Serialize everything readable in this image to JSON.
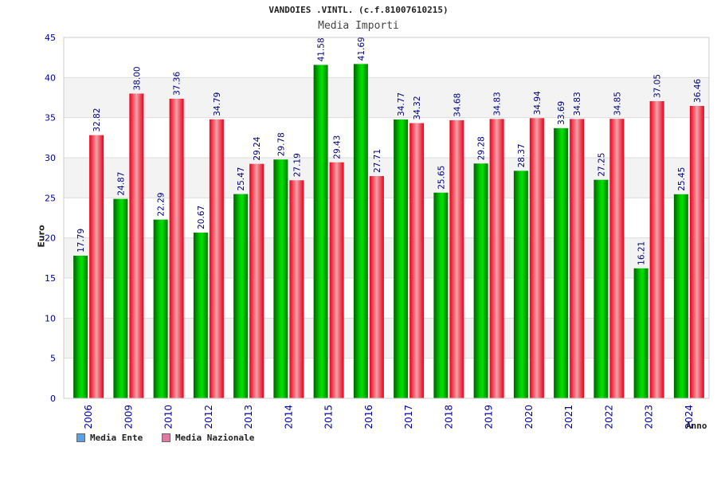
{
  "colors": {
    "ente": "#00c800",
    "nazionale": "#f02828",
    "legend_ente": "#5aa0e6",
    "legend_nazionale": "#e07aa0",
    "axis_text": "#0000a0",
    "value_text": "#000080",
    "grid": "#dddddd",
    "band": "#f3f3f3"
  },
  "chart_data": {
    "type": "bar",
    "title": "VANDOIES .VINTL. (c.f.81007610215)",
    "subtitle": "Media Importi",
    "xlabel": "Anno",
    "ylabel": "Euro",
    "ylim": [
      0,
      45
    ],
    "yticks": [
      "0",
      "5",
      "10",
      "15",
      "20",
      "25",
      "30",
      "35",
      "40",
      "45"
    ],
    "categories": [
      "2006",
      "2009",
      "2010",
      "2012",
      "2013",
      "2014",
      "2015",
      "2016",
      "2017",
      "2018",
      "2019",
      "2020",
      "2021",
      "2022",
      "2023",
      "2024"
    ],
    "series": [
      {
        "name": "Media Ente",
        "values": [
          17.79,
          24.87,
          22.29,
          20.67,
          25.47,
          29.78,
          41.58,
          41.69,
          34.77,
          25.65,
          29.28,
          28.37,
          33.69,
          27.25,
          16.21,
          25.45
        ],
        "labels": [
          "17.79",
          "24.87",
          "22.29",
          "20.67",
          "25.47",
          "29.78",
          "41.58",
          "41.69",
          "34.77",
          "25.65",
          "29.28",
          "28.37",
          "33.69",
          "27.25",
          "16.21",
          "25.45"
        ]
      },
      {
        "name": "Media Nazionale",
        "values": [
          32.82,
          38.0,
          37.36,
          34.79,
          29.24,
          27.19,
          29.43,
          27.71,
          34.32,
          34.68,
          34.83,
          34.94,
          34.83,
          34.85,
          37.05,
          36.46
        ],
        "labels": [
          "32.82",
          "38.00",
          "37.36",
          "34.79",
          "29.24",
          "27.19",
          "29.43",
          "27.71",
          "34.32",
          "34.68",
          "34.83",
          "34.94",
          "34.83",
          "34.85",
          "37.05",
          "36.46"
        ]
      }
    ],
    "legend_position": "bottom-left",
    "grid": true
  }
}
